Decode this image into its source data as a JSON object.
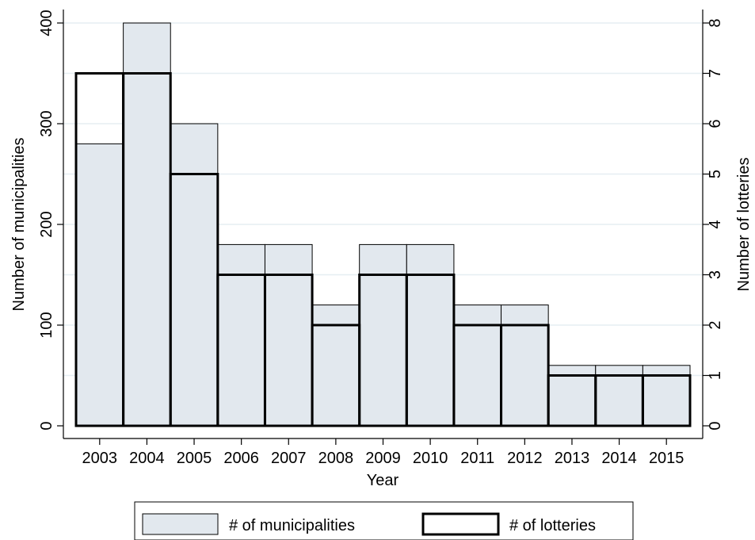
{
  "chart_data": {
    "type": "bar",
    "title": "",
    "xlabel": "Year",
    "ylabel_left": "Number of municipalities",
    "ylabel_right": "Number of lotteries",
    "categories": [
      "2003",
      "2004",
      "2005",
      "2006",
      "2007",
      "2008",
      "2009",
      "2010",
      "2011",
      "2012",
      "2013",
      "2014",
      "2015"
    ],
    "ylim_left": [
      0,
      400
    ],
    "ylim_right": [
      0,
      8
    ],
    "yticks_left": [
      0,
      100,
      200,
      300,
      400
    ],
    "yticks_right": [
      0,
      1,
      2,
      3,
      4,
      5,
      6,
      7,
      8
    ],
    "grid": true,
    "legend_position": "bottom",
    "series": [
      {
        "name": "# of municipalities",
        "axis": "left",
        "style": "filled",
        "color": "#e2e8ee",
        "values": [
          280,
          400,
          300,
          180,
          180,
          120,
          180,
          180,
          120,
          120,
          60,
          60,
          60
        ]
      },
      {
        "name": "# of lotteries",
        "axis": "right",
        "style": "outline",
        "color": "#000000",
        "values": [
          7,
          7,
          5,
          3,
          3,
          2,
          3,
          3,
          2,
          2,
          1,
          1,
          1
        ]
      }
    ]
  }
}
